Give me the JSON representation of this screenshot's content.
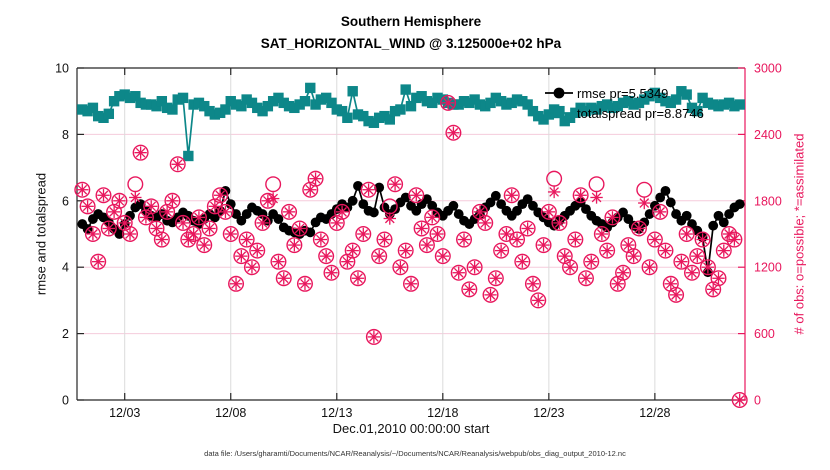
{
  "title": {
    "line1": "Southern Hemisphere",
    "line2": "SAT_HORIZONTAL_WIND @ 3.125000e+02 hPa"
  },
  "axes": {
    "xlabel": "Dec.01,2010 00:00:00 start",
    "ylabel_left": "rmse and totalspread",
    "ylabel_right": "# of obs: o=possible; *=assimilated"
  },
  "legend": {
    "rmse_label": "rmse pr=5.5349",
    "totalspread_label": "totalspread pr=8.8746"
  },
  "footer": {
    "datafile": "data file: /Users/gharamti/Documents/NCAR/Reanalysis/~/Documents/NCAR/Reanalysis/webpub/obs_diag_output_2010-12.nc"
  },
  "colors": {
    "rmse": "#000000",
    "totalspread": "#0D8789",
    "obs": "#E8175D",
    "axis_dark": "#262626",
    "grid_gray": "#DBDBDB",
    "grid_pink": "#F5CBDB"
  },
  "chart_data": {
    "type": "line",
    "title": "Southern Hemisphere — SAT_HORIZONTAL_WIND @ 3.125000e+02 hPa",
    "x_unit": "days since Dec.01,2010 00:00:00",
    "x_start": 0,
    "x_step": 0.25,
    "x_range": [
      -0.25,
      31.25
    ],
    "x_ticks": [
      {
        "day": 2,
        "label": "12/03"
      },
      {
        "day": 7,
        "label": "12/08"
      },
      {
        "day": 12,
        "label": "12/13"
      },
      {
        "day": 17,
        "label": "12/18"
      },
      {
        "day": 22,
        "label": "12/23"
      },
      {
        "day": 27,
        "label": "12/28"
      }
    ],
    "y_left_range": [
      0,
      10
    ],
    "y_left_ticks": [
      0,
      2,
      4,
      6,
      8,
      10
    ],
    "y_right_range": [
      0,
      3000
    ],
    "y_right_ticks": [
      0,
      600,
      1200,
      1800,
      2400,
      3000
    ],
    "grid_y_left": [
      2,
      4,
      6,
      8
    ],
    "series": [
      {
        "name": "rmse",
        "axis": "left",
        "marker": "filled-circle",
        "mean": 5.5349,
        "values": [
          5.3,
          5.15,
          5.45,
          5.6,
          5.5,
          5.35,
          5.15,
          5.0,
          5.3,
          5.55,
          5.8,
          5.9,
          5.7,
          5.55,
          5.5,
          5.6,
          5.4,
          5.35,
          5.5,
          5.65,
          5.55,
          5.4,
          5.3,
          5.45,
          5.6,
          5.5,
          5.7,
          6.3,
          5.9,
          5.6,
          5.4,
          5.6,
          5.8,
          5.7,
          5.6,
          5.4,
          5.6,
          5.45,
          5.2,
          5.1,
          5.05,
          5.0,
          5.1,
          5.05,
          5.35,
          5.5,
          5.45,
          5.6,
          5.75,
          5.9,
          5.8,
          6.0,
          6.45,
          5.9,
          5.7,
          5.65,
          6.4,
          5.8,
          5.6,
          5.75,
          5.95,
          6.1,
          5.85,
          5.7,
          5.9,
          6.05,
          5.85,
          5.65,
          5.55,
          5.7,
          5.85,
          5.6,
          5.4,
          5.3,
          5.45,
          5.6,
          5.8,
          5.95,
          6.15,
          5.9,
          5.7,
          5.55,
          5.7,
          5.9,
          6.05,
          5.85,
          5.65,
          5.5,
          5.35,
          5.25,
          5.4,
          5.55,
          5.7,
          5.85,
          5.95,
          5.75,
          5.55,
          5.4,
          5.3,
          5.2,
          5.35,
          5.5,
          5.65,
          5.45,
          5.25,
          5.15,
          5.35,
          5.6,
          5.85,
          6.1,
          6.3,
          5.95,
          5.6,
          5.4,
          5.55,
          5.3,
          5.1,
          4.9,
          3.85,
          5.25,
          5.55,
          5.35,
          5.6,
          5.8,
          5.9
        ]
      },
      {
        "name": "totalspread",
        "axis": "left",
        "marker": "filled-square",
        "mean": 8.8746,
        "values": [
          8.75,
          8.7,
          8.8,
          8.55,
          8.5,
          8.62,
          9.0,
          9.15,
          9.2,
          9.1,
          9.15,
          8.95,
          8.9,
          8.9,
          8.85,
          9.0,
          8.8,
          8.75,
          9.05,
          9.1,
          7.35,
          8.9,
          8.95,
          8.85,
          8.7,
          8.6,
          8.65,
          8.75,
          9.0,
          8.9,
          8.85,
          9.05,
          8.95,
          8.8,
          8.7,
          8.85,
          9.0,
          9.1,
          8.95,
          8.85,
          8.8,
          8.9,
          9.0,
          9.4,
          8.9,
          9.05,
          9.1,
          8.95,
          8.75,
          8.7,
          8.5,
          9.3,
          8.6,
          8.55,
          8.4,
          8.35,
          8.5,
          8.55,
          8.45,
          8.7,
          8.75,
          9.35,
          8.85,
          9.1,
          9.15,
          9.0,
          8.95,
          9.1,
          9.05,
          8.95,
          8.9,
          8.9,
          9.0,
          8.95,
          9.05,
          8.9,
          8.85,
          8.95,
          9.1,
          9.0,
          8.9,
          8.95,
          9.05,
          9.0,
          8.9,
          8.7,
          8.55,
          8.45,
          8.6,
          8.75,
          8.7,
          8.4,
          8.5,
          8.65,
          8.8,
          8.7,
          8.8,
          8.75,
          8.85,
          8.9,
          8.8,
          8.85,
          8.95,
          9.0,
          8.9,
          8.95,
          9.05,
          9.15,
          9.25,
          9.1,
          9.0,
          8.95,
          9.05,
          9.3,
          9.2,
          8.8,
          8.7,
          9.1,
          8.95,
          8.9,
          8.85,
          8.9,
          8.95,
          8.85,
          8.9
        ]
      },
      {
        "name": "obs_possible",
        "axis": "right",
        "marker": "open-circle",
        "values": [
          1900,
          1750,
          1500,
          1250,
          1850,
          1550,
          1700,
          1800,
          1600,
          1500,
          1950,
          2235,
          1650,
          1750,
          1550,
          1450,
          1700,
          1800,
          2130,
          1600,
          1450,
          1500,
          1650,
          1400,
          1550,
          1750,
          1850,
          1700,
          1500,
          1050,
          1300,
          1450,
          1200,
          1350,
          1600,
          1800,
          1950,
          1250,
          1100,
          1700,
          1400,
          1550,
          1050,
          1900,
          2000,
          1450,
          1300,
          1150,
          1600,
          1700,
          1250,
          1350,
          1100,
          1500,
          1900,
          570,
          1300,
          1450,
          1750,
          1950,
          1200,
          1350,
          1050,
          1850,
          1550,
          1400,
          1650,
          1500,
          1300,
          2685,
          2415,
          1150,
          1450,
          1000,
          1200,
          1700,
          1600,
          950,
          1100,
          1350,
          1500,
          1850,
          1450,
          1250,
          1550,
          1050,
          900,
          1400,
          1700,
          2000,
          1600,
          1300,
          1200,
          1450,
          1850,
          1100,
          1250,
          1950,
          1500,
          1350,
          1650,
          1050,
          1150,
          1400,
          1300,
          1550,
          1900,
          1200,
          1450,
          1700,
          1350,
          1050,
          950,
          1250,
          1500,
          1150,
          1300,
          1450,
          1200,
          1000,
          1100,
          1350,
          1500,
          1450,
          0
        ]
      },
      {
        "name": "obs_assimilated",
        "axis": "right",
        "marker": "asterisk",
        "values": [
          1900,
          1750,
          1500,
          1250,
          1850,
          1550,
          1700,
          1800,
          1600,
          1500,
          1830,
          2235,
          1650,
          1750,
          1550,
          1450,
          1700,
          1800,
          2130,
          1600,
          1450,
          1500,
          1650,
          1400,
          1550,
          1750,
          1850,
          1700,
          1500,
          1050,
          1300,
          1450,
          1200,
          1350,
          1600,
          1800,
          1820,
          1250,
          1100,
          1700,
          1400,
          1550,
          1050,
          1900,
          2000,
          1450,
          1300,
          1150,
          1600,
          1700,
          1250,
          1350,
          1100,
          1500,
          1900,
          570,
          1300,
          1450,
          1640,
          1950,
          1200,
          1350,
          1050,
          1850,
          1550,
          1400,
          1650,
          1500,
          1300,
          2685,
          2415,
          1150,
          1450,
          1000,
          1200,
          1700,
          1600,
          950,
          1100,
          1350,
          1500,
          1850,
          1450,
          1250,
          1550,
          1050,
          900,
          1400,
          1700,
          1880,
          1600,
          1300,
          1200,
          1450,
          1850,
          1100,
          1250,
          1830,
          1500,
          1350,
          1650,
          1050,
          1150,
          1400,
          1300,
          1550,
          1780,
          1200,
          1450,
          1700,
          1350,
          1050,
          950,
          1250,
          1500,
          1150,
          1300,
          1450,
          1200,
          1000,
          1100,
          1350,
          1500,
          1450,
          0
        ]
      }
    ],
    "legend_entries": [
      "rmse pr=5.5349",
      "totalspread pr=8.8746"
    ],
    "legend_position": "upper-right-inside",
    "grid": "on"
  }
}
